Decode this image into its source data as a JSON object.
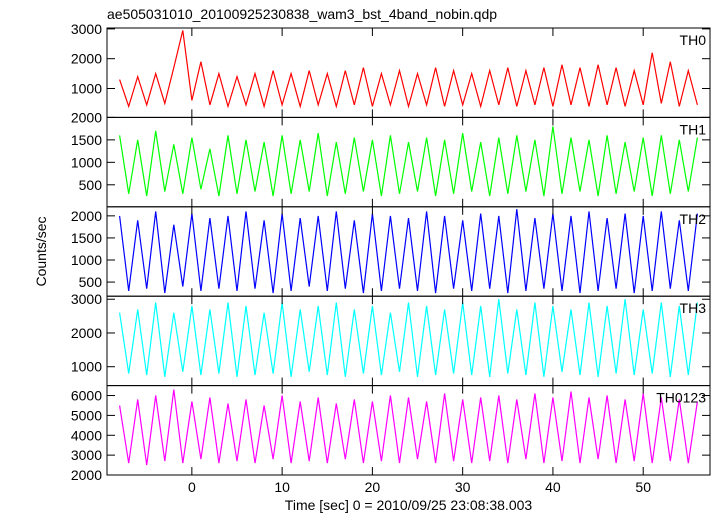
{
  "chart_data": [
    {
      "type": "line",
      "title": "ae505031010_20100925230838_wam3_bst_4band_nobin.qdp",
      "x": [
        -8,
        -7,
        -6,
        -5,
        -4,
        -3,
        -2,
        -1,
        0,
        1,
        2,
        3,
        4,
        5,
        6,
        7,
        8,
        9,
        10,
        11,
        12,
        13,
        14,
        15,
        16,
        17,
        18,
        19,
        20,
        21,
        22,
        23,
        24,
        25,
        26,
        27,
        28,
        29,
        30,
        31,
        32,
        33,
        34,
        35,
        36,
        37,
        38,
        39,
        40,
        41,
        42,
        43,
        44,
        45,
        46,
        47,
        48,
        49,
        50,
        51,
        52,
        53,
        54,
        55,
        56
      ],
      "series": [
        {
          "name": "TH0",
          "color": "#ff0000",
          "values": [
            1300,
            400,
            1400,
            450,
            1500,
            500,
            1700,
            2950,
            600,
            1900,
            450,
            1500,
            400,
            1400,
            450,
            1500,
            400,
            1600,
            450,
            1500,
            400,
            1600,
            450,
            1500,
            400,
            1600,
            450,
            1700,
            400,
            1500,
            450,
            1600,
            400,
            1500,
            450,
            1700,
            400,
            1600,
            450,
            1500,
            400,
            1600,
            450,
            1700,
            400,
            1600,
            450,
            1700,
            400,
            1800,
            450,
            1700,
            400,
            1800,
            450,
            1700,
            400,
            1600,
            450,
            2200,
            500,
            1900,
            400,
            1600,
            450
          ]
        }
      ],
      "xlim": [
        -9.4,
        57.4
      ],
      "xticks": [
        0,
        10,
        20,
        30,
        40,
        50
      ],
      "ylim": [
        30,
        3030
      ],
      "yticks": [
        1000,
        2000,
        3000
      ]
    },
    {
      "type": "line",
      "x": [
        -8,
        -7,
        -6,
        -5,
        -4,
        -3,
        -2,
        -1,
        0,
        1,
        2,
        3,
        4,
        5,
        6,
        7,
        8,
        9,
        10,
        11,
        12,
        13,
        14,
        15,
        16,
        17,
        18,
        19,
        20,
        21,
        22,
        23,
        24,
        25,
        26,
        27,
        28,
        29,
        30,
        31,
        32,
        33,
        34,
        35,
        36,
        37,
        38,
        39,
        40,
        41,
        42,
        43,
        44,
        45,
        46,
        47,
        48,
        49,
        50,
        51,
        52,
        53,
        54,
        55,
        56
      ],
      "series": [
        {
          "name": "TH1",
          "color": "#00ff00",
          "values": [
            1600,
            300,
            1500,
            250,
            1700,
            350,
            1400,
            300,
            1550,
            400,
            1300,
            250,
            1600,
            300,
            1500,
            350,
            1450,
            250,
            1600,
            300,
            1500,
            350,
            1650,
            250,
            1450,
            300,
            1550,
            350,
            1500,
            250,
            1600,
            300,
            1450,
            350,
            1550,
            250,
            1500,
            300,
            1650,
            350,
            1450,
            250,
            1550,
            300,
            1600,
            350,
            1500,
            250,
            1800,
            300,
            1550,
            350,
            1500,
            250,
            1600,
            300,
            1450,
            350,
            1550,
            250,
            1600,
            300,
            1500,
            350,
            1550
          ]
        }
      ],
      "xlim": [
        -9.4,
        57.4
      ],
      "xticks": [
        0,
        10,
        20,
        30,
        40,
        50
      ],
      "ylim": [
        10,
        2000
      ],
      "yticks": [
        500,
        1000,
        1500,
        2000
      ]
    },
    {
      "type": "line",
      "ylabel": "Counts/sec",
      "x": [
        -8,
        -7,
        -6,
        -5,
        -4,
        -3,
        -2,
        -1,
        0,
        1,
        2,
        3,
        4,
        5,
        6,
        7,
        8,
        9,
        10,
        11,
        12,
        13,
        14,
        15,
        16,
        17,
        18,
        19,
        20,
        21,
        22,
        23,
        24,
        25,
        26,
        27,
        28,
        29,
        30,
        31,
        32,
        33,
        34,
        35,
        36,
        37,
        38,
        39,
        40,
        41,
        42,
        43,
        44,
        45,
        46,
        47,
        48,
        49,
        50,
        51,
        52,
        53,
        54,
        55,
        56
      ],
      "series": [
        {
          "name": "TH2",
          "color": "#0000ff",
          "values": [
            2000,
            300,
            1900,
            350,
            2100,
            250,
            1800,
            400,
            2050,
            300,
            1950,
            350,
            2000,
            300,
            2100,
            350,
            1900,
            250,
            2050,
            300,
            1950,
            400,
            2000,
            300,
            2100,
            350,
            1900,
            250,
            2050,
            300,
            2000,
            350,
            1950,
            300,
            2100,
            250,
            2000,
            350,
            1900,
            300,
            2050,
            350,
            2000,
            250,
            2150,
            300,
            1950,
            350,
            2050,
            300,
            2000,
            250,
            2100,
            300,
            1950,
            350,
            2050,
            250,
            2000,
            300,
            2100,
            350,
            1900,
            300,
            2050
          ]
        }
      ],
      "xlim": [
        -9.4,
        57.4
      ],
      "xticks": [
        0,
        10,
        20,
        30,
        40,
        50
      ],
      "ylim": [
        180,
        2205
      ],
      "yticks": [
        500,
        1000,
        1500,
        2000
      ]
    },
    {
      "type": "line",
      "x": [
        -8,
        -7,
        -6,
        -5,
        -4,
        -3,
        -2,
        -1,
        0,
        1,
        2,
        3,
        4,
        5,
        6,
        7,
        8,
        9,
        10,
        11,
        12,
        13,
        14,
        15,
        16,
        17,
        18,
        19,
        20,
        21,
        22,
        23,
        24,
        25,
        26,
        27,
        28,
        29,
        30,
        31,
        32,
        33,
        34,
        35,
        36,
        37,
        38,
        39,
        40,
        41,
        42,
        43,
        44,
        45,
        46,
        47,
        48,
        49,
        50,
        51,
        52,
        53,
        54,
        55,
        56
      ],
      "series": [
        {
          "name": "TH3",
          "color": "#00ffff",
          "values": [
            2600,
            800,
            2700,
            750,
            2900,
            700,
            2600,
            850,
            2800,
            750,
            2700,
            800,
            2900,
            700,
            2800,
            750,
            2600,
            800,
            2900,
            700,
            2700,
            850,
            2800,
            750,
            2900,
            700,
            2700,
            800,
            2800,
            750,
            2600,
            850,
            2900,
            700,
            2800,
            750,
            2700,
            800,
            2900,
            750,
            2800,
            700,
            3000,
            800,
            2700,
            750,
            2900,
            700,
            2800,
            850,
            2700,
            750,
            2900,
            700,
            2800,
            800,
            3000,
            750,
            2700,
            800,
            2900,
            700,
            2800,
            750,
            2900
          ]
        }
      ],
      "xlim": [
        -9.4,
        57.4
      ],
      "xticks": [
        0,
        10,
        20,
        30,
        40,
        50
      ],
      "ylim": [
        440,
        3090
      ],
      "yticks": [
        1000,
        2000,
        3000
      ]
    },
    {
      "type": "line",
      "xlabel": "Time [sec] 0 = 2010/09/25 23:08:38.003",
      "x": [
        -8,
        -7,
        -6,
        -5,
        -4,
        -3,
        -2,
        -1,
        0,
        1,
        2,
        3,
        4,
        5,
        6,
        7,
        8,
        9,
        10,
        11,
        12,
        13,
        14,
        15,
        16,
        17,
        18,
        19,
        20,
        21,
        22,
        23,
        24,
        25,
        26,
        27,
        28,
        29,
        30,
        31,
        32,
        33,
        34,
        35,
        36,
        37,
        38,
        39,
        40,
        41,
        42,
        43,
        44,
        45,
        46,
        47,
        48,
        49,
        50,
        51,
        52,
        53,
        54,
        55,
        56
      ],
      "series": [
        {
          "name": "TH0123",
          "color": "#ff00ff",
          "values": [
            5500,
            2600,
            5800,
            2500,
            6000,
            2700,
            6300,
            2600,
            5700,
            2800,
            5900,
            2600,
            5600,
            2700,
            5800,
            2600,
            5500,
            2800,
            6000,
            2600,
            5700,
            2700,
            5900,
            2600,
            5600,
            2800,
            5800,
            2600,
            5700,
            2700,
            6000,
            2600,
            5900,
            2800,
            5700,
            2600,
            6100,
            2700,
            5800,
            2600,
            5900,
            2700,
            6000,
            2600,
            5800,
            2800,
            6100,
            2600,
            5900,
            2700,
            6200,
            2600,
            5900,
            2800,
            6000,
            2600,
            5800,
            2700,
            6100,
            2600,
            5900,
            2700,
            5800,
            2600,
            5700
          ]
        }
      ],
      "xlim": [
        -9.4,
        57.4
      ],
      "xticks": [
        0,
        10,
        20,
        30,
        40,
        50
      ],
      "ylim": [
        2000,
        6500
      ],
      "yticks": [
        2000,
        3000,
        4000,
        5000,
        6000
      ]
    }
  ]
}
